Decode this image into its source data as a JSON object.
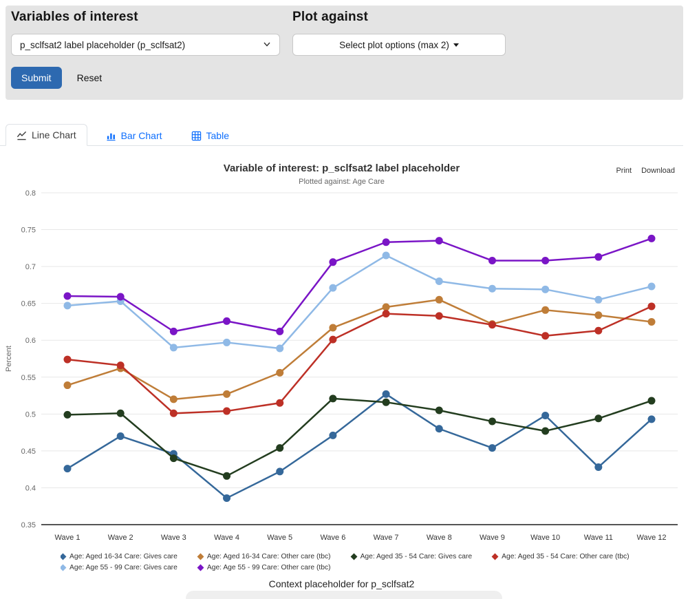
{
  "controls": {
    "variables_label": "Variables of interest",
    "variables_value": "p_sclfsat2 label placeholder (p_sclfsat2)",
    "plot_against_label": "Plot against",
    "plot_against_value": "Select plot options (max 2)",
    "submit_label": "Submit",
    "reset_label": "Reset"
  },
  "tabs": [
    {
      "label": "Line Chart",
      "active": true
    },
    {
      "label": "Bar Chart",
      "active": false
    },
    {
      "label": "Table",
      "active": false
    }
  ],
  "export": {
    "print": "Print",
    "download": "Download"
  },
  "chart_data": {
    "type": "line",
    "title": "Variable of interest: p_sclfsat2 label placeholder",
    "subtitle": "Plotted against: Age Care",
    "ylabel": "Percent",
    "ylim": [
      0.35,
      0.8
    ],
    "ytick_step": 0.05,
    "grid": true,
    "legend_position": "bottom",
    "categories": [
      "Wave 1",
      "Wave 2",
      "Wave 3",
      "Wave 4",
      "Wave 5",
      "Wave 6",
      "Wave 7",
      "Wave 8",
      "Wave 9",
      "Wave 10",
      "Wave 11",
      "Wave 12"
    ],
    "series": [
      {
        "name": "Age: Aged 16-34 Care: Gives care",
        "color": "#35689a",
        "values": [
          0.426,
          0.47,
          0.446,
          0.386,
          0.422,
          0.471,
          0.527,
          0.48,
          0.454,
          0.498,
          0.428,
          0.493
        ]
      },
      {
        "name": "Age: Aged 16-34 Care: Other care (tbc)",
        "color": "#bf7d38",
        "values": [
          0.539,
          0.562,
          0.52,
          0.527,
          0.556,
          0.617,
          0.645,
          0.655,
          0.622,
          0.641,
          0.634,
          0.625
        ]
      },
      {
        "name": "Age: Aged 35 - 54 Care: Gives care",
        "color": "#233d1f",
        "values": [
          0.499,
          0.501,
          0.44,
          0.416,
          0.454,
          0.521,
          0.516,
          0.505,
          0.49,
          0.477,
          0.494,
          0.518
        ]
      },
      {
        "name": "Age: Aged 35 - 54 Care: Other care (tbc)",
        "color": "#bd3026",
        "values": [
          0.574,
          0.566,
          0.501,
          0.504,
          0.515,
          0.601,
          0.636,
          0.633,
          0.621,
          0.606,
          0.613,
          0.646
        ]
      },
      {
        "name": "Age: Age 55 - 99 Care: Gives care",
        "color": "#8fb9e6",
        "values": [
          0.647,
          0.653,
          0.59,
          0.597,
          0.589,
          0.671,
          0.715,
          0.68,
          0.67,
          0.669,
          0.655,
          0.673
        ]
      },
      {
        "name": "Age: Age 55 - 99 Care: Other care (tbc)",
        "color": "#7a15c6",
        "values": [
          0.66,
          0.659,
          0.612,
          0.626,
          0.612,
          0.706,
          0.733,
          0.735,
          0.708,
          0.708,
          0.713,
          0.738
        ]
      }
    ]
  },
  "footer": {
    "context": "Context placeholder for p_sclfsat2"
  },
  "colors": {
    "accent_blue": "#2d69b0",
    "link_blue": "#0d6efd",
    "panel_gray": "#e4e4e4",
    "grid_line": "#e7e7e7",
    "axis_line": "#555555",
    "tick_text": "#666666"
  }
}
